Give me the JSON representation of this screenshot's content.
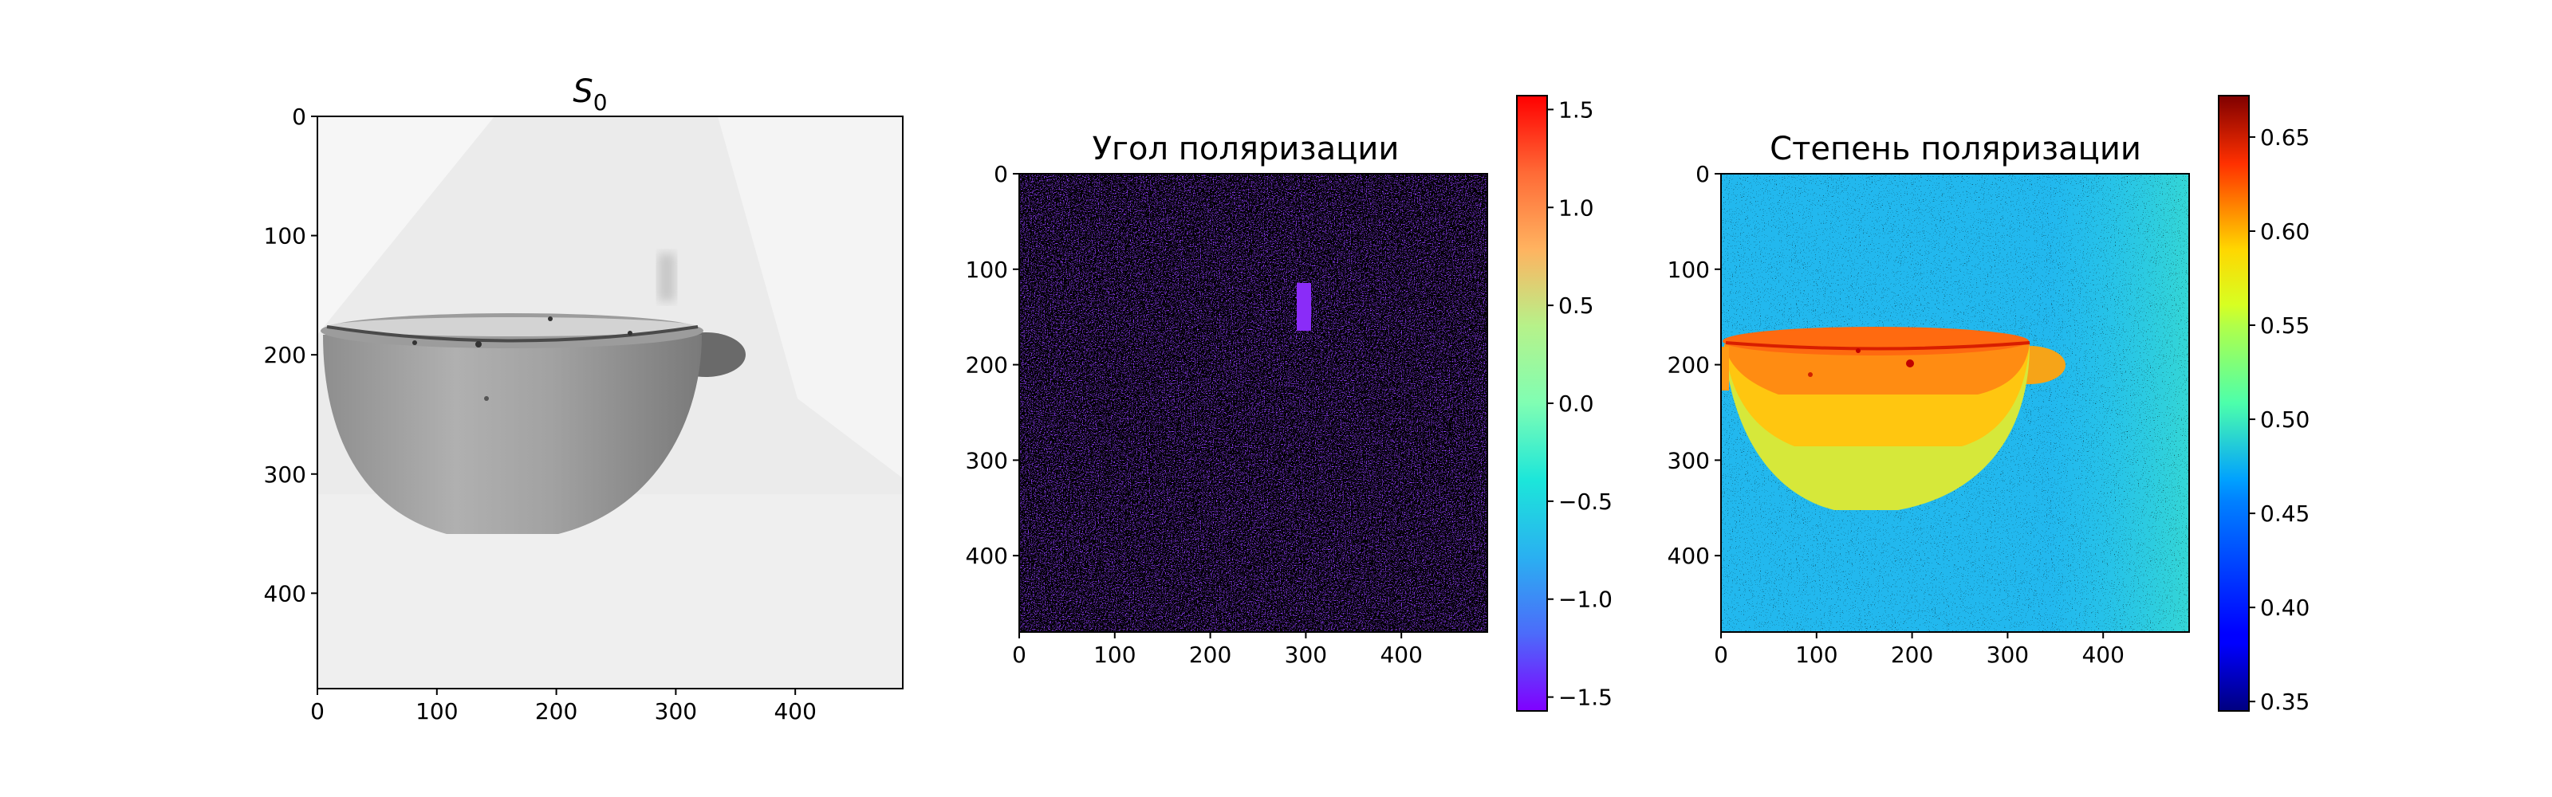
{
  "chart_data": [
    {
      "type": "heatmap",
      "title_base": "S",
      "title_sub": "0",
      "colormap": "gray",
      "xlim": [
        0,
        490
      ],
      "ylim": [
        480,
        0
      ],
      "xticks": [
        0,
        100,
        200,
        300,
        400
      ],
      "yticks": [
        0,
        100,
        200,
        300,
        400
      ]
    },
    {
      "type": "heatmap",
      "title": "Угол поляризации",
      "colormap": "rainbow",
      "xlim": [
        0,
        490
      ],
      "ylim": [
        480,
        0
      ],
      "xticks": [
        0,
        100,
        200,
        300,
        400
      ],
      "yticks": [
        0,
        100,
        200,
        300,
        400
      ],
      "colorbar": {
        "range": [
          -1.5708,
          1.5708
        ],
        "ticks": [
          1.5,
          1.0,
          0.5,
          0.0,
          -0.5,
          -1.0,
          -1.5
        ]
      }
    },
    {
      "type": "heatmap",
      "title": "Степень поляризации",
      "colormap": "jet",
      "xlim": [
        0,
        490
      ],
      "ylim": [
        480,
        0
      ],
      "xticks": [
        0,
        100,
        200,
        300,
        400
      ],
      "yticks": [
        0,
        100,
        200,
        300,
        400
      ],
      "colorbar": {
        "range": [
          0.345,
          0.672
        ],
        "ticks": [
          0.65,
          0.6,
          0.55,
          0.5,
          0.45,
          0.4,
          0.35
        ]
      }
    }
  ]
}
